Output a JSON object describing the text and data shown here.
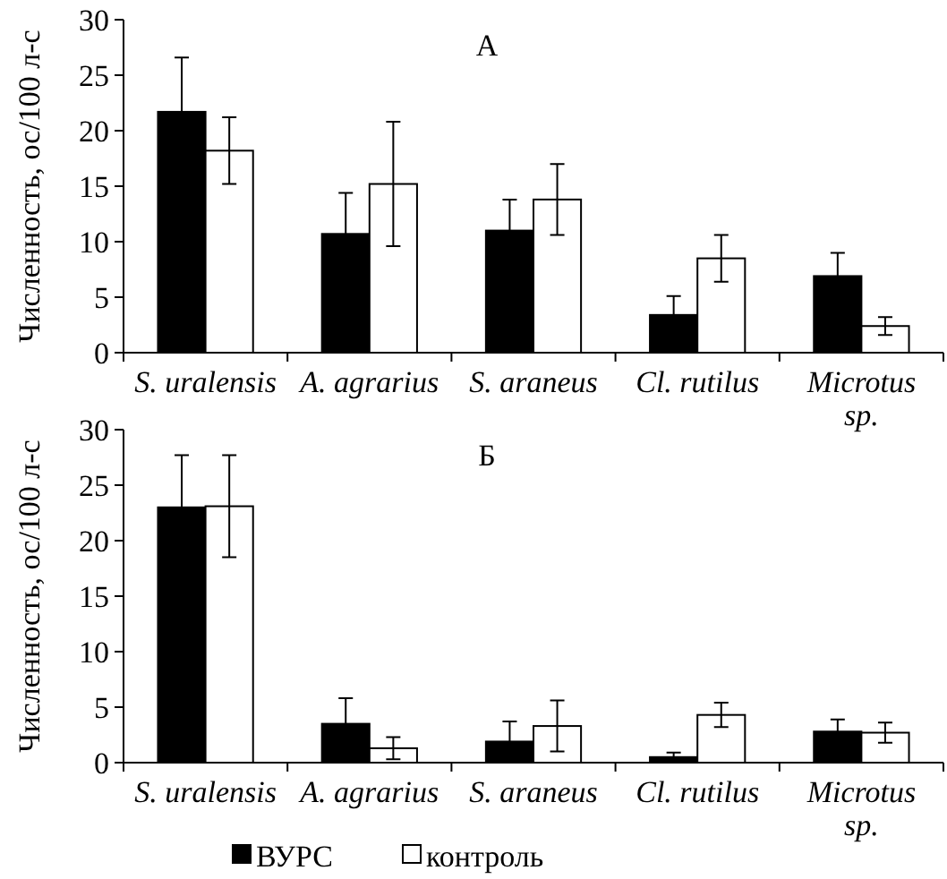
{
  "chart_data": [
    {
      "type": "bar",
      "title": "А",
      "ylabel": "Численность, ос/100 л-с",
      "categories": [
        "S. uralensis",
        "A. agrarius",
        "S. araneus",
        "Cl. rutilus",
        "Microtus sp."
      ],
      "ylim": [
        0,
        30
      ],
      "yticks": [
        0,
        5,
        10,
        15,
        20,
        25,
        30
      ],
      "legend": false,
      "series": [
        {
          "color": "#000000",
          "values": [
            21.7,
            10.7,
            11.0,
            3.4,
            6.9
          ],
          "errors": [
            4.9,
            3.7,
            2.8,
            1.7,
            2.1
          ]
        },
        {
          "color": "#ffffff",
          "values": [
            18.2,
            15.2,
            13.8,
            8.5,
            2.4
          ],
          "errors": [
            3.0,
            5.6,
            3.2,
            2.1,
            0.8
          ]
        }
      ]
    },
    {
      "type": "bar",
      "title": "Б",
      "ylabel": "Численность, ос/100 л-с",
      "categories": [
        "S. uralensis",
        "A. agrarius",
        "S. araneus",
        "Cl. rutilus",
        "Microtus sp."
      ],
      "ylim": [
        0,
        30
      ],
      "yticks": [
        0,
        5,
        10,
        15,
        20,
        25,
        30
      ],
      "legend": "bottom",
      "series": [
        {
          "name": "ВУРС",
          "color": "#000000",
          "values": [
            23.0,
            3.5,
            1.9,
            0.5,
            2.8
          ],
          "errors": [
            4.7,
            2.3,
            1.8,
            0.4,
            1.1
          ]
        },
        {
          "name": "контроль",
          "color": "#ffffff",
          "values": [
            23.1,
            1.3,
            3.3,
            4.3,
            2.7
          ],
          "errors": [
            4.6,
            1.0,
            2.3,
            1.1,
            0.9
          ]
        }
      ]
    }
  ]
}
